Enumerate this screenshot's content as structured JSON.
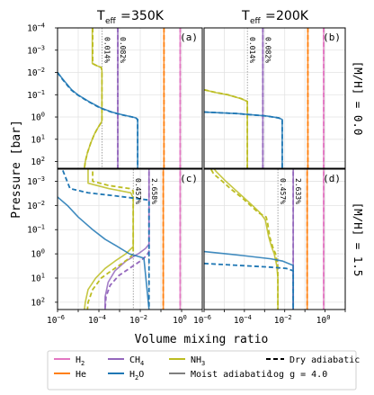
{
  "figure": {
    "col_titles": [
      "350K",
      "200K"
    ],
    "row_labels": [
      "[M/H] = 0.0",
      "[M/H] = 1.5"
    ],
    "xlabel": "Volume mixing ratio",
    "ylabel": "Pressure [bar]"
  },
  "chart_data": {
    "type": "line",
    "xscale": "log",
    "yscale": "log",
    "xlim": [
      1e-06,
      10
    ],
    "ylim_bar": [
      200,
      0.0001
    ],
    "y_inverted": true,
    "grid": true,
    "legend_placement": "below",
    "xticks": [
      "10^-6",
      "10^-4",
      "10^-2",
      "10^0"
    ],
    "yticks_top": [
      "10^-4",
      "10^-3",
      "10^-2",
      "10^-1",
      "10^0",
      "10^1",
      "10^2"
    ],
    "yticks_bottom": [
      "10^-3",
      "10^-2",
      "10^-1",
      "10^0",
      "10^1",
      "10^2"
    ],
    "colors": {
      "H2": "#e377c2",
      "He": "#ff7f0e",
      "CH4": "#9467bd",
      "H2O": "#1f77b4",
      "NH3": "#bcbd22",
      "Moist adiabatic": "#7f7f7f"
    },
    "legend": {
      "species": [
        "H2",
        "He",
        "CH4",
        "H2O",
        "NH3",
        "Moist adiabatic"
      ],
      "styles": [
        "Dry adiabatic"
      ],
      "note": "log g = 4.0"
    },
    "panels": [
      {
        "id": "(a)",
        "teff": 350,
        "metallicity": 0.0,
        "labels": [
          {
            "text": "0.014%",
            "x": 0.00014
          },
          {
            "text": "0.082%",
            "x": 0.00082
          }
        ],
        "series": [
          {
            "name": "H2",
            "style": "dry",
            "p": [
              0.0001,
              200
            ],
            "x": [
              0.85,
              0.85
            ]
          },
          {
            "name": "H2",
            "style": "moist",
            "p": [
              0.0001,
              200
            ],
            "x": [
              0.85,
              0.85
            ]
          },
          {
            "name": "He",
            "style": "dry",
            "p": [
              0.0001,
              200
            ],
            "x": [
              0.14,
              0.14
            ]
          },
          {
            "name": "He",
            "style": "moist",
            "p": [
              0.0001,
              200
            ],
            "x": [
              0.14,
              0.14
            ]
          },
          {
            "name": "CH4",
            "style": "dry",
            "p": [
              0.0001,
              200
            ],
            "x": [
              0.00082,
              0.00082
            ]
          },
          {
            "name": "CH4",
            "style": "moist",
            "p": [
              0.0001,
              200
            ],
            "x": [
              0.00082,
              0.00082
            ]
          },
          {
            "name": "NH3",
            "style": "dry",
            "p": [
              0.0001,
              0.004,
              0.005,
              0.006,
              0.008,
              0.012,
              1.5,
              2,
              3,
              6,
              15,
              40,
              100,
              200
            ],
            "x": [
              5e-05,
              5e-05,
              8e-05,
              0.00013,
              0.00014,
              0.00014,
              0.00014,
              0.00012,
              9e-05,
              6e-05,
              4e-05,
              2.8e-05,
              2.2e-05,
              2e-05
            ]
          },
          {
            "name": "NH3",
            "style": "moist",
            "p": [
              0.0001,
              0.004,
              0.005,
              0.006,
              0.008,
              0.012,
              1.5,
              2,
              3,
              6,
              15,
              40,
              100,
              200
            ],
            "x": [
              4.8e-05,
              4.8e-05,
              8e-05,
              0.00013,
              0.00014,
              0.00014,
              0.00014,
              0.00012,
              9e-05,
              6e-05,
              4e-05,
              2.8e-05,
              2.2e-05,
              2e-05
            ]
          },
          {
            "name": "H2O",
            "style": "dry",
            "p": [
              0.01,
              0.02,
              0.06,
              0.1,
              0.2,
              0.4,
              0.6,
              0.8,
              1.0,
              1.1,
              1.3,
              200
            ],
            "x": [
              1e-06,
              1.7e-06,
              4.5e-06,
              9e-06,
              3e-05,
              0.00012,
              0.0004,
              0.0013,
              0.004,
              0.006,
              0.0075,
              0.0075
            ]
          },
          {
            "name": "H2O",
            "style": "moist",
            "p": [
              0.01,
              0.02,
              0.06,
              0.1,
              0.2,
              0.4,
              0.6,
              0.8,
              1.0,
              1.1,
              1.3,
              200
            ],
            "x": [
              1e-06,
              1.8e-06,
              4.8e-06,
              9.5e-06,
              3.2e-05,
              0.00013,
              0.00042,
              0.0014,
              0.0042,
              0.0062,
              0.0075,
              0.0075
            ]
          }
        ]
      },
      {
        "id": "(b)",
        "teff": 200,
        "metallicity": 0.0,
        "labels": [
          {
            "text": "0.014%",
            "x": 0.00014
          },
          {
            "text": "0.082%",
            "x": 0.00082
          }
        ],
        "series": [
          {
            "name": "H2",
            "style": "dry",
            "p": [
              0.0001,
              200
            ],
            "x": [
              0.85,
              0.85
            ]
          },
          {
            "name": "H2",
            "style": "moist",
            "p": [
              0.0001,
              200
            ],
            "x": [
              0.85,
              0.85
            ]
          },
          {
            "name": "He",
            "style": "dry",
            "p": [
              0.0001,
              200
            ],
            "x": [
              0.14,
              0.14
            ]
          },
          {
            "name": "He",
            "style": "moist",
            "p": [
              0.0001,
              200
            ],
            "x": [
              0.14,
              0.14
            ]
          },
          {
            "name": "CH4",
            "style": "dry",
            "p": [
              0.0001,
              200
            ],
            "x": [
              0.00082,
              0.00082
            ]
          },
          {
            "name": "CH4",
            "style": "moist",
            "p": [
              0.0001,
              200
            ],
            "x": [
              0.00082,
              0.00082
            ]
          },
          {
            "name": "NH3",
            "style": "dry",
            "p": [
              0.06,
              0.08,
              0.1,
              0.15,
              0.2,
              200
            ],
            "x": [
              1e-06,
              4e-06,
              1.5e-05,
              7e-05,
              0.00014,
              0.00014
            ]
          },
          {
            "name": "NH3",
            "style": "moist",
            "p": [
              0.06,
              0.08,
              0.1,
              0.15,
              0.2,
              200
            ],
            "x": [
              1e-06,
              3.8e-06,
              1.4e-05,
              6.8e-05,
              0.00014,
              0.00014
            ]
          },
          {
            "name": "H2O",
            "style": "dry",
            "p": [
              0.6,
              0.7,
              0.9,
              1.1,
              1.3,
              200
            ],
            "x": [
              1e-06,
              4e-05,
              0.0012,
              0.005,
              0.0075,
              0.0075
            ]
          },
          {
            "name": "H2O",
            "style": "moist",
            "p": [
              0.6,
              0.7,
              0.9,
              1.1,
              1.3,
              200
            ],
            "x": [
              1e-06,
              4.2e-05,
              0.0013,
              0.0052,
              0.0075,
              0.0075
            ]
          }
        ]
      },
      {
        "id": "(c)",
        "teff": 350,
        "metallicity": 1.5,
        "labels": [
          {
            "text": "0.457%",
            "x": 0.00457
          },
          {
            "text": "2.658%",
            "x": 0.02658
          }
        ],
        "series": [
          {
            "name": "H2",
            "style": "dry",
            "p": [
              0.0001,
              200
            ],
            "x": [
              0.85,
              0.85
            ]
          },
          {
            "name": "H2",
            "style": "moist",
            "p": [
              0.0001,
              200
            ],
            "x": [
              0.85,
              0.85
            ]
          },
          {
            "name": "He",
            "style": "dry",
            "p": [
              0.0001,
              200
            ],
            "x": [
              0.13,
              0.13
            ]
          },
          {
            "name": "He",
            "style": "moist",
            "p": [
              0.0001,
              200
            ],
            "x": [
              0.13,
              0.13
            ]
          },
          {
            "name": "CH4",
            "style": "dry",
            "p": [
              0.0001,
              0.8,
              1.2,
              2,
              4,
              8,
              20,
              60,
              200
            ],
            "x": [
              0.02658,
              0.02658,
              0.02,
              0.01,
              0.003,
              0.0009,
              0.00035,
              0.00022,
              0.0002
            ]
          },
          {
            "name": "CH4",
            "style": "moist",
            "p": [
              0.0001,
              0.4,
              0.6,
              1,
              2,
              5,
              15,
              60,
              200
            ],
            "x": [
              0.02658,
              0.02658,
              0.018,
              0.008,
              0.002,
              0.0006,
              0.00028,
              0.0002,
              0.0002
            ]
          },
          {
            "name": "NH3",
            "style": "dry",
            "p": [
              0.0001,
              0.001,
              0.0015,
              0.002,
              0.0025,
              1,
              1.5,
              2.5,
              5,
              10,
              30,
              100,
              200
            ],
            "x": [
              5e-05,
              5e-05,
              0.0003,
              0.003,
              0.00457,
              0.00457,
              0.003,
              0.0013,
              0.0004,
              0.00013,
              5e-05,
              3e-05,
              2.8e-05
            ]
          },
          {
            "name": "NH3",
            "style": "moist",
            "p": [
              0.0001,
              0.0012,
              0.002,
              0.003,
              0.005,
              0.5,
              1,
              2,
              4,
              10,
              30,
              100,
              200
            ],
            "x": [
              3e-05,
              3e-05,
              0.0003,
              0.0035,
              0.00457,
              0.00457,
              0.002,
              0.0006,
              0.0002,
              7e-05,
              3e-05,
              2.2e-05,
              2e-05
            ]
          },
          {
            "name": "H2O",
            "style": "dry",
            "p": [
              0.0001,
              0.002,
              0.003,
              0.004,
              0.006,
              200
            ],
            "x": [
              1e-06,
              4e-06,
              3e-05,
              0.0006,
              0.02658,
              0.02658
            ]
          },
          {
            "name": "H2O",
            "style": "moist",
            "p": [
              0.0045,
              0.01,
              0.03,
              0.1,
              0.25,
              0.5,
              1,
              1.5,
              200
            ],
            "x": [
              1e-06,
              3e-06,
              1e-05,
              5e-05,
              0.0002,
              0.0008,
              0.003,
              0.015,
              0.02658
            ]
          }
        ]
      },
      {
        "id": "(d)",
        "teff": 200,
        "metallicity": 1.5,
        "labels": [
          {
            "text": "0.457%",
            "x": 0.00457
          },
          {
            "text": "2.633%",
            "x": 0.02633
          }
        ],
        "series": [
          {
            "name": "H2",
            "style": "dry",
            "p": [
              0.0001,
              200
            ],
            "x": [
              0.85,
              0.85
            ]
          },
          {
            "name": "H2",
            "style": "moist",
            "p": [
              0.0001,
              200
            ],
            "x": [
              0.85,
              0.85
            ]
          },
          {
            "name": "He",
            "style": "dry",
            "p": [
              0.0001,
              200
            ],
            "x": [
              0.13,
              0.13
            ]
          },
          {
            "name": "He",
            "style": "moist",
            "p": [
              0.0001,
              200
            ],
            "x": [
              0.13,
              0.13
            ]
          },
          {
            "name": "CH4",
            "style": "dry",
            "p": [
              0.0001,
              200
            ],
            "x": [
              0.02633,
              0.02633
            ]
          },
          {
            "name": "CH4",
            "style": "moist",
            "p": [
              0.0001,
              200
            ],
            "x": [
              0.02633,
              0.02633
            ]
          },
          {
            "name": "NH3",
            "style": "dry",
            "p": [
              0.0001,
              0.0005,
              0.001,
              0.002,
              0.005,
              0.01,
              0.02,
              0.03,
              0.05,
              0.2,
              0.5,
              1,
              3,
              10,
              200
            ],
            "x": [
              1e-06,
              3e-06,
              8e-06,
              2e-05,
              8e-05,
              0.0002,
              0.0005,
              0.0012,
              0.0014,
              0.0018,
              0.0025,
              0.0035,
              0.0045,
              0.00457,
              0.00457
            ]
          },
          {
            "name": "NH3",
            "style": "moist",
            "p": [
              0.0001,
              0.0004,
              0.001,
              0.002,
              0.005,
              0.01,
              0.02,
              0.04,
              0.06,
              0.2,
              0.5,
              1,
              3,
              10,
              200
            ],
            "x": [
              1.2e-06,
              4e-06,
              1.2e-05,
              3e-05,
              0.0001,
              0.00025,
              0.0006,
              0.0011,
              0.0012,
              0.0016,
              0.0022,
              0.003,
              0.004,
              0.00457,
              0.00457
            ]
          },
          {
            "name": "H2O",
            "style": "dry",
            "p": [
              2.5,
              3,
              3.5,
              4,
              5,
              200
            ],
            "x": [
              1e-06,
              5e-05,
              0.0015,
              0.012,
              0.02633,
              0.02633
            ]
          },
          {
            "name": "H2O",
            "style": "moist",
            "p": [
              0.8,
              1.2,
              1.6,
              2,
              3,
              200
            ],
            "x": [
              1e-06,
              0.0001,
              0.002,
              0.008,
              0.02633,
              0.02633
            ]
          }
        ]
      }
    ]
  }
}
